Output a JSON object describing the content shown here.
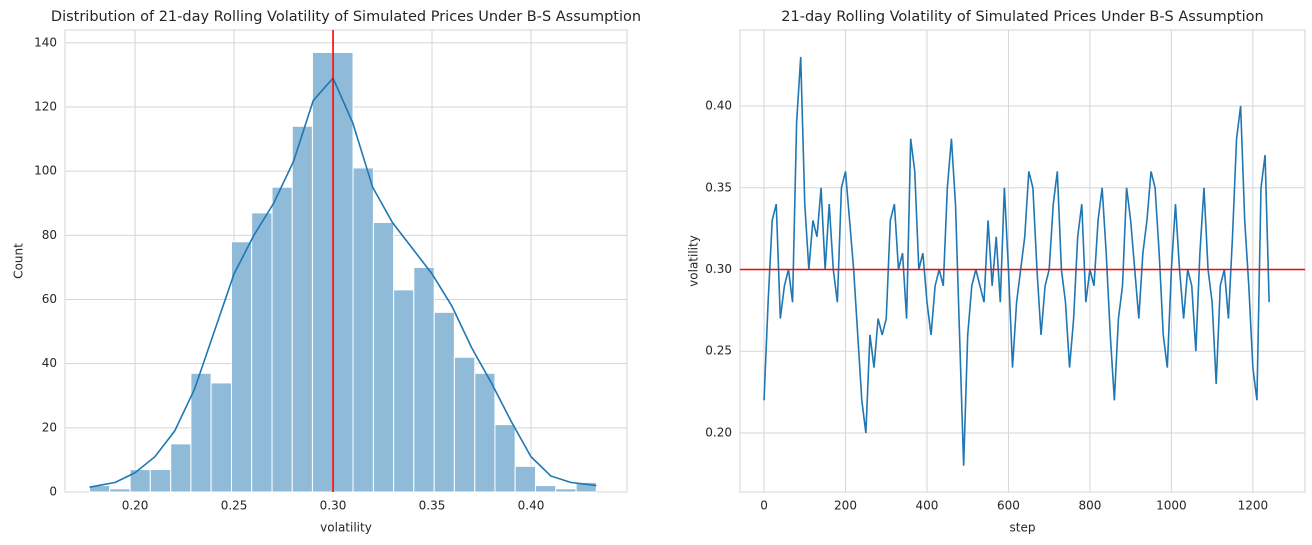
{
  "chart_data": [
    {
      "type": "histogram",
      "title": "Distribution of 21-day Rolling Volatility of Simulated Prices Under B-S Assumption",
      "x_label": "volatility",
      "y_label": "Count",
      "bins": [
        0.177,
        0.1872,
        0.1975,
        0.2077,
        0.218,
        0.2282,
        0.2384,
        0.2487,
        0.2589,
        0.2692,
        0.2794,
        0.2896,
        0.2999,
        0.3101,
        0.3204,
        0.3306,
        0.3408,
        0.3511,
        0.3613,
        0.3716,
        0.3818,
        0.392,
        0.4023,
        0.4125,
        0.4228,
        0.433
      ],
      "values": [
        2,
        1,
        7,
        7,
        15,
        37,
        34,
        78,
        87,
        95,
        114,
        137,
        137,
        101,
        84,
        63,
        70,
        56,
        42,
        37,
        21,
        8,
        2,
        1,
        3
      ],
      "color": "#8fbbd9",
      "line_color": "#1f77b4",
      "kde": {
        "x": [
          0.177,
          0.19,
          0.2,
          0.21,
          0.22,
          0.23,
          0.24,
          0.25,
          0.26,
          0.27,
          0.28,
          0.29,
          0.3,
          0.31,
          0.32,
          0.33,
          0.34,
          0.35,
          0.36,
          0.37,
          0.38,
          0.39,
          0.4,
          0.41,
          0.42,
          0.433
        ],
        "values": [
          1.5,
          3,
          6,
          11,
          19,
          32,
          50,
          68,
          80,
          90,
          103,
          122,
          129,
          115,
          95,
          84,
          76,
          68,
          58,
          45,
          34,
          22,
          11,
          5,
          3,
          2
        ]
      },
      "vline": 0.3,
      "ref_color": "#ff0000",
      "xlim": [
        0.1646,
        0.4485
      ],
      "ylim": [
        0,
        144
      ],
      "xticks": [
        {
          "value": 0.2,
          "label": "0.20"
        },
        {
          "value": 0.25,
          "label": "0.25"
        },
        {
          "value": 0.3,
          "label": "0.30"
        },
        {
          "value": 0.35,
          "label": "0.35"
        },
        {
          "value": 0.4,
          "label": "0.40"
        }
      ],
      "yticks": [
        0,
        20,
        40,
        60,
        80,
        100,
        120,
        140
      ],
      "grid": true
    },
    {
      "type": "line",
      "title": "21-day Rolling Volatility of Simulated Prices Under B-S Assumption",
      "x_label": "step",
      "y_label": "volatility",
      "x": [
        0,
        10,
        20,
        30,
        40,
        50,
        60,
        70,
        80,
        90,
        100,
        110,
        120,
        130,
        140,
        150,
        160,
        170,
        180,
        190,
        200,
        210,
        220,
        230,
        240,
        250,
        260,
        270,
        280,
        290,
        300,
        310,
        320,
        330,
        340,
        350,
        360,
        370,
        380,
        390,
        400,
        410,
        420,
        430,
        440,
        450,
        460,
        470,
        480,
        490,
        500,
        510,
        520,
        530,
        540,
        550,
        560,
        570,
        580,
        590,
        600,
        610,
        620,
        630,
        640,
        650,
        660,
        670,
        680,
        690,
        700,
        710,
        720,
        730,
        740,
        750,
        760,
        770,
        780,
        790,
        800,
        810,
        820,
        830,
        840,
        850,
        860,
        870,
        880,
        890,
        900,
        910,
        920,
        930,
        940,
        950,
        960,
        970,
        980,
        990,
        1000,
        1010,
        1020,
        1030,
        1040,
        1050,
        1060,
        1070,
        1080,
        1090,
        1100,
        1110,
        1120,
        1130,
        1140,
        1150,
        1160,
        1170,
        1180,
        1190,
        1200,
        1210,
        1220,
        1230,
        1240
      ],
      "values": [
        0.22,
        0.28,
        0.33,
        0.34,
        0.27,
        0.29,
        0.3,
        0.28,
        0.39,
        0.43,
        0.34,
        0.3,
        0.33,
        0.32,
        0.35,
        0.3,
        0.34,
        0.3,
        0.28,
        0.35,
        0.36,
        0.33,
        0.3,
        0.26,
        0.22,
        0.2,
        0.26,
        0.24,
        0.27,
        0.26,
        0.27,
        0.33,
        0.34,
        0.3,
        0.31,
        0.27,
        0.38,
        0.36,
        0.3,
        0.31,
        0.28,
        0.26,
        0.29,
        0.3,
        0.29,
        0.35,
        0.38,
        0.34,
        0.26,
        0.18,
        0.26,
        0.29,
        0.3,
        0.29,
        0.28,
        0.33,
        0.29,
        0.32,
        0.28,
        0.35,
        0.3,
        0.24,
        0.28,
        0.3,
        0.32,
        0.36,
        0.35,
        0.3,
        0.26,
        0.29,
        0.3,
        0.34,
        0.36,
        0.3,
        0.28,
        0.24,
        0.27,
        0.32,
        0.34,
        0.28,
        0.3,
        0.29,
        0.33,
        0.35,
        0.31,
        0.26,
        0.22,
        0.27,
        0.29,
        0.35,
        0.33,
        0.3,
        0.27,
        0.31,
        0.33,
        0.36,
        0.35,
        0.31,
        0.26,
        0.24,
        0.3,
        0.34,
        0.3,
        0.27,
        0.3,
        0.29,
        0.25,
        0.31,
        0.35,
        0.3,
        0.28,
        0.23,
        0.29,
        0.3,
        0.27,
        0.32,
        0.38,
        0.4,
        0.33,
        0.29,
        0.24,
        0.22,
        0.35,
        0.37,
        0.28
      ],
      "color": "#1f77b4",
      "hline": 0.3,
      "ref_color": "#ff0000",
      "xlim": [
        -59,
        1328
      ],
      "ylim": [
        0.1639,
        0.4465
      ],
      "xticks": [
        0,
        200,
        400,
        600,
        800,
        1000,
        1200
      ],
      "yticks": [
        {
          "value": 0.2,
          "label": "0.20"
        },
        {
          "value": 0.25,
          "label": "0.25"
        },
        {
          "value": 0.3,
          "label": "0.30"
        },
        {
          "value": 0.35,
          "label": "0.35"
        },
        {
          "value": 0.4,
          "label": "0.40"
        }
      ],
      "grid": true
    }
  ]
}
